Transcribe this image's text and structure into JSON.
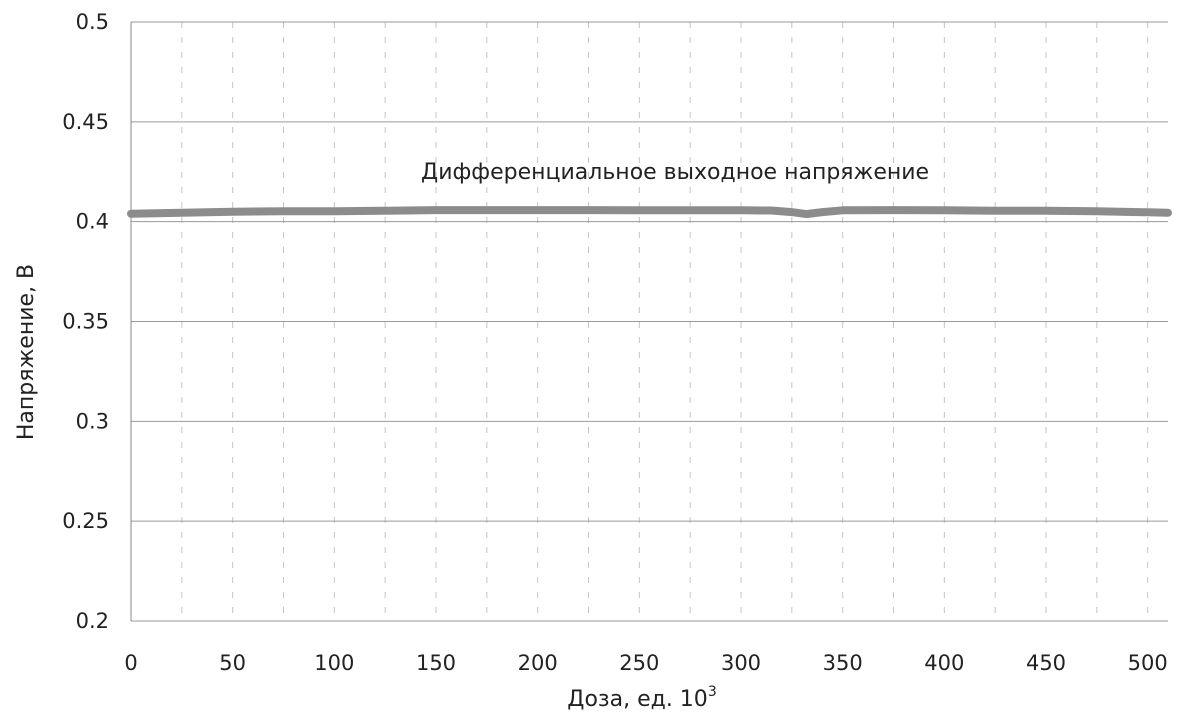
{
  "chart_data": {
    "type": "line",
    "title": "",
    "xlabel": "Доза, ед. 10",
    "xlabel_superscript": "3",
    "ylabel": "Напряжение, В",
    "xlim": [
      0,
      510
    ],
    "ylim": [
      0.2,
      0.5
    ],
    "x_ticks": [
      "0",
      "50",
      "100",
      "150",
      "200",
      "250",
      "300",
      "350",
      "400",
      "450",
      "500"
    ],
    "y_ticks": [
      "0.5",
      "0.45",
      "0.4",
      "0.35",
      "0.3",
      "0.25",
      "0.2"
    ],
    "grid": "horizontal major, vertical dashed",
    "legend": "none",
    "annotation": "Дифференциальное выходное напряжение",
    "series_color": "#8c8c8c",
    "series": [
      {
        "x": [
          0,
          25,
          50,
          75,
          100,
          125,
          150,
          175,
          200,
          225,
          250,
          275,
          300,
          315,
          325,
          332,
          340,
          350,
          375,
          400,
          425,
          450,
          475,
          500,
          510
        ],
        "y": [
          0.404,
          0.4045,
          0.405,
          0.4052,
          0.4052,
          0.4055,
          0.4058,
          0.4058,
          0.4058,
          0.4058,
          0.4057,
          0.4057,
          0.4057,
          0.4056,
          0.4048,
          0.4038,
          0.4048,
          0.4057,
          0.4058,
          0.4057,
          0.4055,
          0.4055,
          0.4052,
          0.4047,
          0.4045
        ]
      }
    ]
  }
}
